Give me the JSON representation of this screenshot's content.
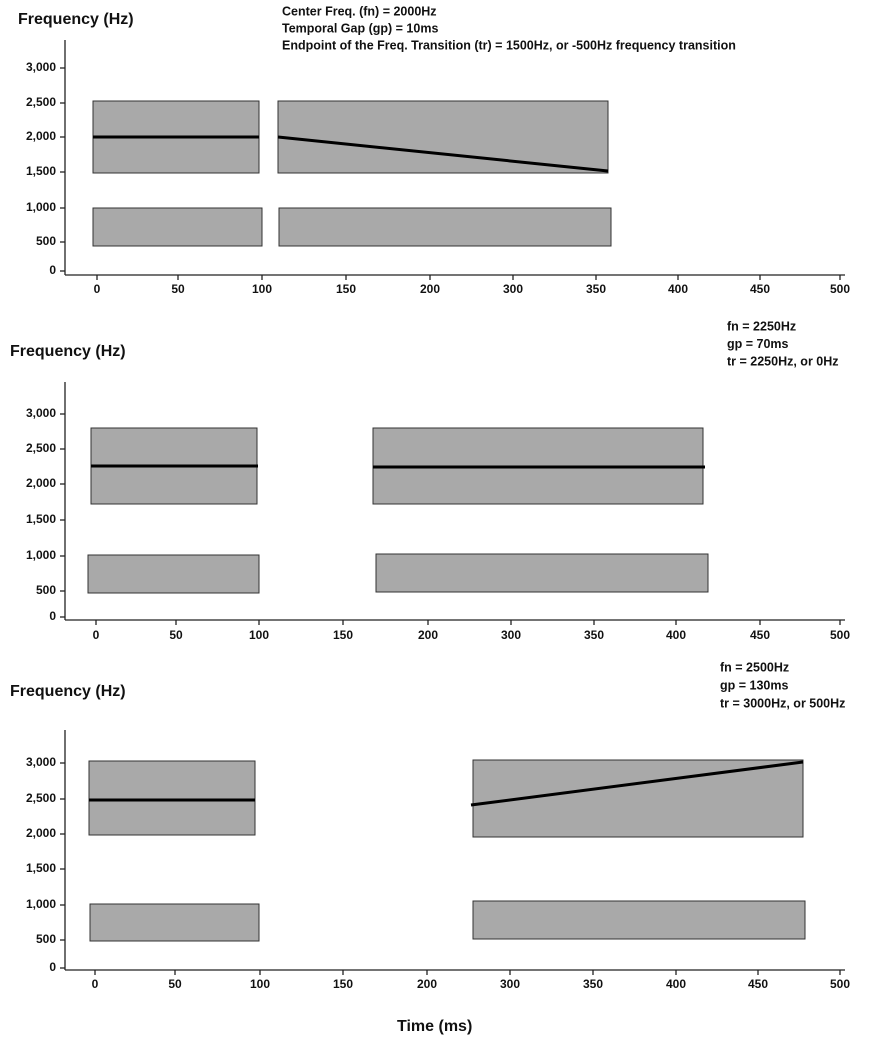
{
  "panels": [
    {
      "y_axis_label": "Frequency (Hz)",
      "annotations": [
        "Center Freq. (fn) = 2000Hz",
        "Temporal Gap (gp) = 10ms",
        "Endpoint of the Freq. Transition (tr) = 1500Hz, or -500Hz frequency transition"
      ],
      "y_ticks": [
        "3,000",
        "2,500",
        "2,000",
        "1,500",
        "1,000",
        "500",
        "0"
      ],
      "x_ticks": [
        "0",
        "50",
        "100",
        "150",
        "200",
        "300",
        "350",
        "400",
        "450",
        "500"
      ]
    },
    {
      "y_axis_label": "Frequency (Hz)",
      "annotations": [
        "fn = 2250Hz",
        "gp = 70ms",
        "tr = 2250Hz, or 0Hz"
      ],
      "y_ticks": [
        "3,000",
        "2,500",
        "2,000",
        "1,500",
        "1,000",
        "500",
        "0"
      ],
      "x_ticks": [
        "0",
        "50",
        "100",
        "150",
        "200",
        "300",
        "350",
        "400",
        "450",
        "500"
      ]
    },
    {
      "y_axis_label": "Frequency (Hz)",
      "annotations": [
        "fn = 2500Hz",
        "gp = 130ms",
        "tr = 3000Hz, or 500Hz"
      ],
      "y_ticks": [
        "3,000",
        "2,500",
        "2,000",
        "1,500",
        "1,000",
        "500",
        "0"
      ],
      "x_ticks": [
        "0",
        "50",
        "100",
        "150",
        "200",
        "300",
        "350",
        "400",
        "450",
        "500"
      ]
    }
  ],
  "x_axis_label": "Time (ms)"
}
